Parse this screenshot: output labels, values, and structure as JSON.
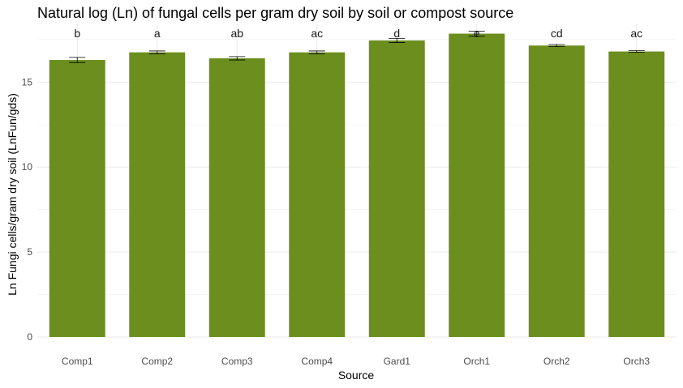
{
  "chart_data": {
    "type": "bar",
    "title": "Natural log (Ln) of fungal cells per gram dry soil by soil or compost source",
    "xlabel": "Source",
    "ylabel": "Ln Fungi cells/gram dry soil (LnFun/gds)",
    "categories": [
      "Comp1",
      "Comp2",
      "Comp3",
      "Comp4",
      "Gard1",
      "Orch1",
      "Orch2",
      "Orch3"
    ],
    "values": [
      16.3,
      16.75,
      16.4,
      16.75,
      17.45,
      17.85,
      17.15,
      16.8
    ],
    "error": [
      0.15,
      0.08,
      0.1,
      0.08,
      0.12,
      0.15,
      0.06,
      0.05
    ],
    "significance_letters": [
      "b",
      "a",
      "ab",
      "ac",
      "d",
      "e",
      "cd",
      "ac"
    ],
    "ylim": [
      0,
      18.4
    ],
    "yticks": [
      0,
      5,
      10,
      15
    ],
    "grid": true,
    "bar_color": "#6b8e1e"
  }
}
